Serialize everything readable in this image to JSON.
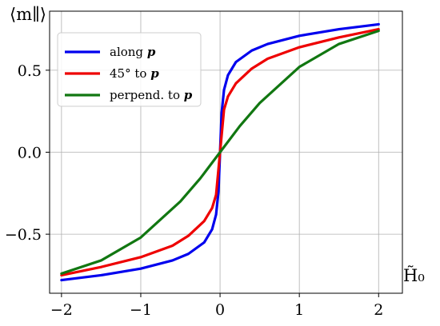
{
  "chart_data": {
    "type": "line",
    "title": "",
    "ylabel": "⟨m∥⟩",
    "xlabel": "H̃₀",
    "xlim": [
      -2.15,
      2.3
    ],
    "ylim": [
      -0.86,
      0.86
    ],
    "xticks": [
      -2,
      -1,
      0,
      1,
      2
    ],
    "xtick_labels": [
      "−2",
      "−1",
      "0",
      "1",
      "2"
    ],
    "yticks": [
      -0.5,
      0.0,
      0.5
    ],
    "ytick_labels": [
      "−0.5",
      "0.0",
      "0.5"
    ],
    "grid": true,
    "legend_position": "top-left",
    "series": [
      {
        "name": "along p",
        "legend_main": "along ",
        "legend_bold": "p",
        "color": "#0000ee",
        "x": [
          -2,
          -1.5,
          -1,
          -0.6,
          -0.4,
          -0.2,
          -0.1,
          -0.05,
          -0.02,
          0,
          0.02,
          0.05,
          0.1,
          0.2,
          0.4,
          0.6,
          1,
          1.5,
          2
        ],
        "y": [
          -0.78,
          -0.75,
          -0.71,
          -0.66,
          -0.62,
          -0.55,
          -0.47,
          -0.38,
          -0.24,
          0,
          0.24,
          0.38,
          0.47,
          0.55,
          0.62,
          0.66,
          0.71,
          0.75,
          0.78
        ]
      },
      {
        "name": "45° to p",
        "legend_main": "45° to ",
        "legend_bold": "p",
        "color": "#ee0000",
        "x": [
          -2,
          -1.5,
          -1,
          -0.6,
          -0.4,
          -0.2,
          -0.1,
          -0.05,
          0,
          0.05,
          0.1,
          0.2,
          0.4,
          0.6,
          1,
          1.5,
          2
        ],
        "y": [
          -0.75,
          -0.7,
          -0.64,
          -0.57,
          -0.51,
          -0.42,
          -0.34,
          -0.26,
          0,
          0.26,
          0.34,
          0.42,
          0.51,
          0.57,
          0.64,
          0.7,
          0.75
        ],
        "marker": "none"
      },
      {
        "name": "perpend. to p",
        "legend_main": "perpend. to ",
        "legend_bold": "p",
        "color": "#117711",
        "x": [
          -2,
          -1.5,
          -1,
          -0.5,
          -0.25,
          0,
          0.25,
          0.5,
          1,
          1.5,
          2
        ],
        "y": [
          -0.74,
          -0.66,
          -0.52,
          -0.3,
          -0.16,
          0,
          0.16,
          0.3,
          0.52,
          0.66,
          0.74
        ]
      }
    ]
  }
}
